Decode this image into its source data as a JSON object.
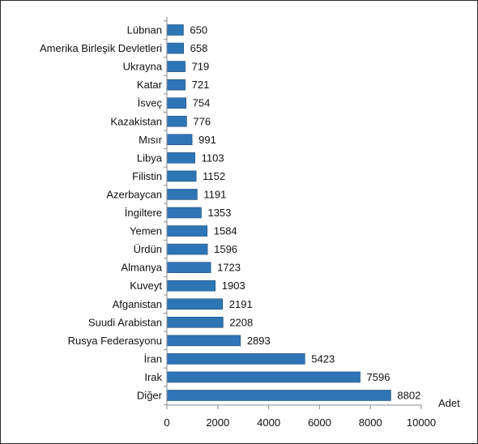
{
  "chart_data": {
    "type": "bar",
    "orientation": "horizontal",
    "categories": [
      "Lübnan",
      "Amerika Birleşik Devletleri",
      "Ukrayna",
      "Katar",
      "İsveç",
      "Kazakistan",
      "Mısır",
      "Libya",
      "Filistin",
      "Azerbaycan",
      "İngiltere",
      "Yemen",
      "Ürdün",
      "Almanya",
      "Kuveyt",
      "Afganistan",
      "Suudi Arabistan",
      "Rusya Federasyonu",
      "İran",
      "Irak",
      "Diğer"
    ],
    "values": [
      650,
      658,
      719,
      721,
      754,
      776,
      991,
      1103,
      1152,
      1191,
      1353,
      1584,
      1596,
      1723,
      1903,
      2191,
      2208,
      2893,
      5423,
      7596,
      8802
    ],
    "xlabel": "Adet",
    "xlim": [
      0,
      10000
    ],
    "xticks": [
      0,
      2000,
      4000,
      6000,
      8000,
      10000
    ],
    "grid": false,
    "legend": "none",
    "bar_color": "#2e75b6"
  }
}
